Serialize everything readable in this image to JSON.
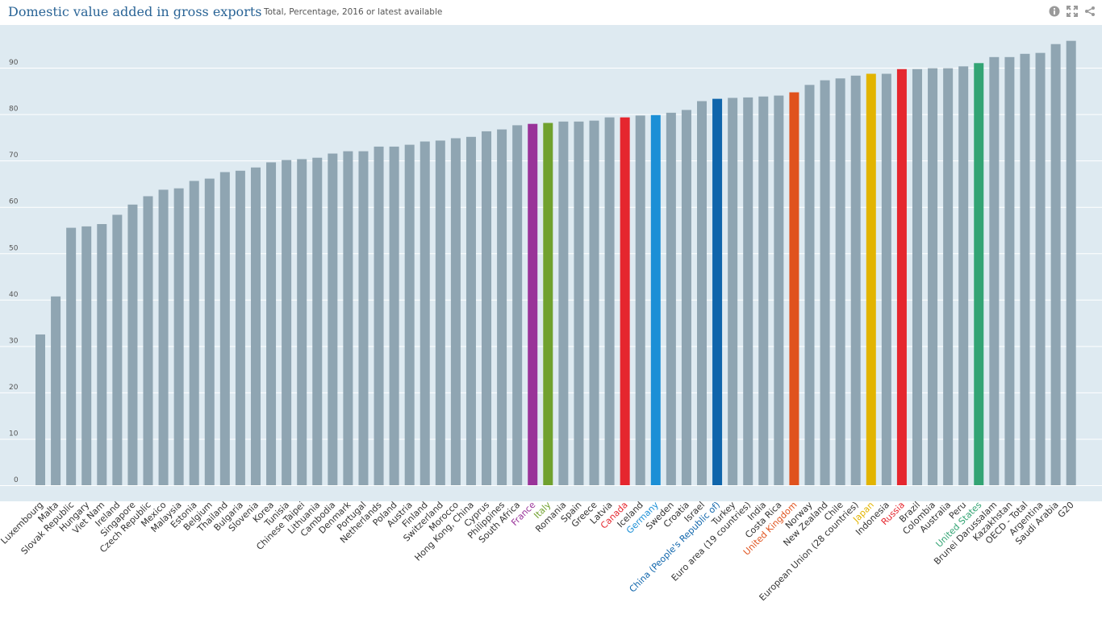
{
  "header": {
    "title": "Domestic value added in gross exports",
    "subtitle": "Total, Percentage, 2016 or latest available",
    "icons": [
      "info-icon",
      "fullscreen-icon",
      "share-icon"
    ]
  },
  "colors": {
    "default_bar": "#8fa5b2",
    "plot_bg": "#deeaf1",
    "grid": "#ffffff",
    "tick_text": "#555555",
    "title": "#2a6496"
  },
  "chart_data": {
    "type": "bar",
    "title": "Domestic value added in gross exports",
    "subtitle": "Total, Percentage, 2016 or latest available",
    "xlabel": "",
    "ylabel": "",
    "ylim": [
      0,
      100
    ],
    "yticks": [
      0,
      10,
      20,
      30,
      40,
      50,
      60,
      70,
      80,
      90
    ],
    "grid": true,
    "categories": [
      "Luxembourg",
      "Malta",
      "Slovak Republic",
      "Hungary",
      "Viet Nam",
      "Ireland",
      "Singapore",
      "Czech Republic",
      "Mexico",
      "Malaysia",
      "Estonia",
      "Belgium",
      "Thailand",
      "Bulgaria",
      "Slovenia",
      "Korea",
      "Tunisia",
      "Chinese Taipei",
      "Lithuania",
      "Cambodia",
      "Denmark",
      "Portugal",
      "Netherlands",
      "Poland",
      "Austria",
      "Finland",
      "Switzerland",
      "Morocco",
      "Hong Kong, China",
      "Cyprus",
      "Philippines",
      "South Africa",
      "France",
      "Italy",
      "Romania",
      "Spain",
      "Greece",
      "Latvia",
      "Canada",
      "Iceland",
      "Germany",
      "Sweden",
      "Croatia",
      "Israel",
      "China (People's Republic of)",
      "Turkey",
      "Euro area (19 countries)",
      "India",
      "Costa Rica",
      "United Kingdom",
      "Norway",
      "New Zealand",
      "Chile",
      "European Union (28 countries)",
      "Japan",
      "Indonesia",
      "Russia",
      "Brazil",
      "Colombia",
      "Australia",
      "Peru",
      "United States",
      "Brunei Darussalam",
      "Kazakhstan",
      "OECD - Total",
      "Argentina",
      "Saudi Arabia",
      "G20"
    ],
    "values": [
      32.5,
      40.7,
      55.5,
      55.8,
      56.3,
      58.3,
      60.5,
      62.3,
      63.7,
      64.0,
      65.6,
      66.1,
      67.5,
      67.8,
      68.5,
      69.6,
      70.1,
      70.3,
      70.6,
      71.5,
      72.0,
      72.0,
      73.0,
      73.0,
      73.4,
      74.1,
      74.3,
      74.8,
      75.1,
      76.3,
      76.7,
      77.6,
      77.9,
      78.1,
      78.4,
      78.4,
      78.6,
      79.3,
      79.3,
      79.7,
      79.8,
      80.3,
      80.9,
      82.8,
      83.3,
      83.5,
      83.6,
      83.8,
      84.0,
      84.7,
      86.3,
      87.3,
      87.7,
      88.3,
      88.7,
      88.7,
      89.7,
      89.7,
      89.9,
      89.9,
      90.3,
      91.0,
      92.3,
      92.3,
      93.0,
      93.2,
      95.1,
      95.8
    ],
    "highlights": {
      "France": "#993399",
      "Italy": "#70a12e",
      "Canada": "#e5262e",
      "Germany": "#1b8fd6",
      "China (People's Republic of)": "#0f65ab",
      "United Kingdom": "#e0521d",
      "Japan": "#e2b400",
      "Russia": "#e5262e",
      "United States": "#33a474"
    }
  }
}
